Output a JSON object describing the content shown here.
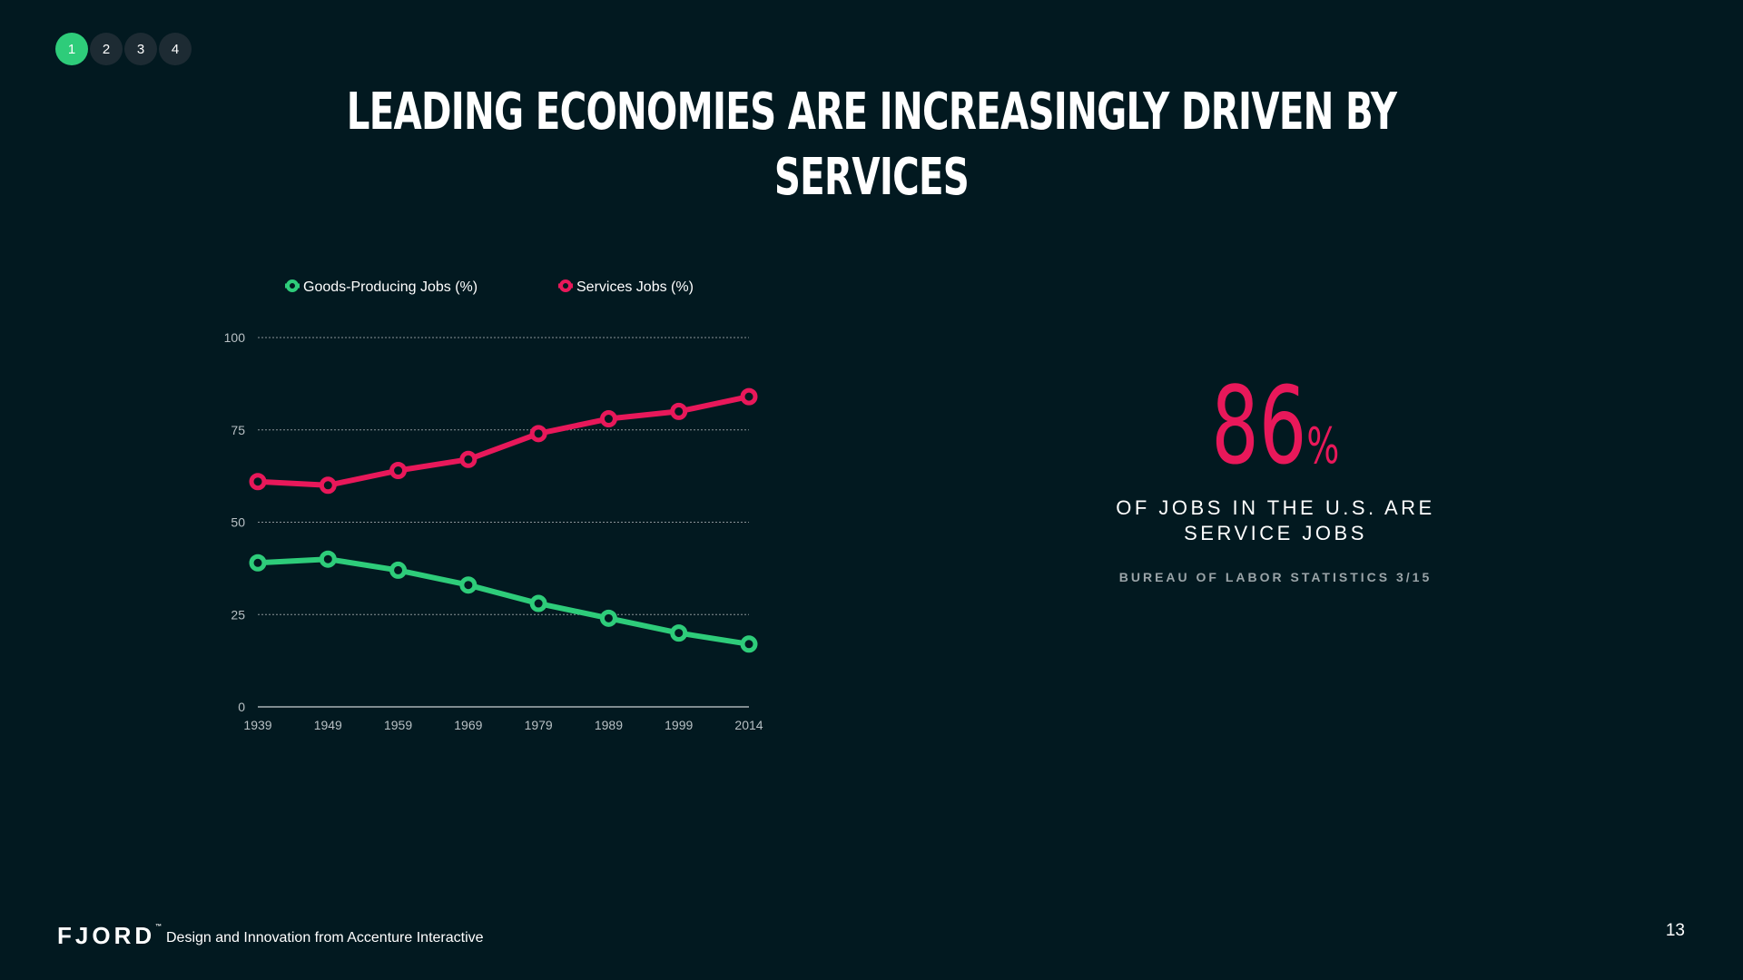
{
  "pager": {
    "pages": [
      "1",
      "2",
      "3",
      "4"
    ],
    "active": "1"
  },
  "title": "LEADING ECONOMIES ARE INCREASINGLY DRIVEN BY SERVICES",
  "chart_data": {
    "type": "line",
    "title": "",
    "xlabel": "",
    "ylabel": "",
    "categories": [
      "1939",
      "1949",
      "1959",
      "1969",
      "1979",
      "1989",
      "1999",
      "2014"
    ],
    "ylim": [
      0,
      100
    ],
    "yticks": [
      0,
      25,
      50,
      75,
      100
    ],
    "grid": true,
    "legend_position": "top",
    "series": [
      {
        "name": "Goods-Producing Jobs (%)",
        "color": "#2ecc7a",
        "values": [
          39,
          40,
          37,
          33,
          28,
          24,
          20,
          17
        ]
      },
      {
        "name": "Services Jobs (%)",
        "color": "#e8185a",
        "values": [
          61,
          60,
          64,
          67,
          74,
          78,
          80,
          84
        ]
      }
    ]
  },
  "stat": {
    "number": "86",
    "unit": "%",
    "caption_line1": "OF JOBS IN THE U.S. ARE",
    "caption_line2": "SERVICE JOBS",
    "source": "BUREAU OF LABOR STATISTICS 3/15"
  },
  "footer": {
    "logo": "FJORD",
    "logo_mark": "™",
    "tagline": "Design and Innovation from Accenture Interactive",
    "page_number": "13"
  },
  "colors": {
    "background": "#021920",
    "accent_green": "#2ecc7a",
    "accent_pink": "#e8185a"
  }
}
